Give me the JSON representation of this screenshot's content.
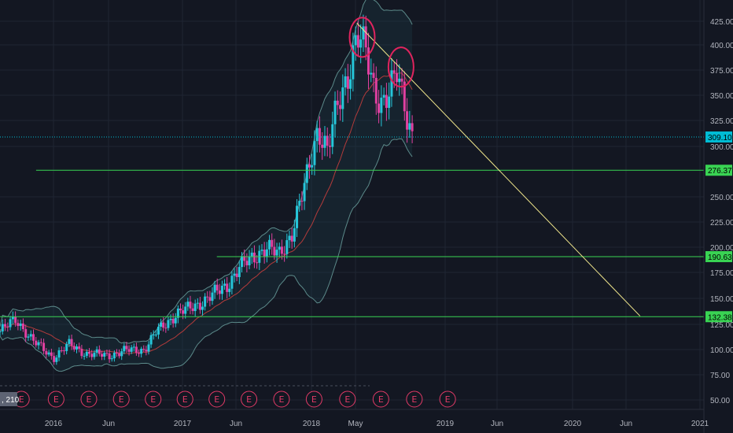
{
  "chart_data": {
    "type": "candlestick",
    "y_ticks": [
      "425.00",
      "400.00",
      "375.00",
      "350.00",
      "325.00",
      "300.00",
      "250.00",
      "225.00",
      "200.00",
      "175.00",
      "150.00",
      "125.00",
      "100.00",
      "75.00",
      "50.00"
    ],
    "y_tick_values": [
      425,
      400,
      375,
      350,
      325,
      300,
      250,
      225,
      200,
      175,
      150,
      125,
      100,
      75,
      50
    ],
    "ylim": [
      40,
      440
    ],
    "x_labels": [
      "2016",
      "Jun",
      "2017",
      "Jun",
      "2018",
      "May",
      "2019",
      "Jun",
      "2020",
      "Jun",
      "2021"
    ],
    "x_label_times": [
      2016.0,
      2016.42,
      2017.0,
      2017.42,
      2018.0,
      2018.33,
      2019.0,
      2019.42,
      2020.0,
      2020.42,
      2021.0
    ],
    "xlim": [
      2015.6,
      2021.0
    ],
    "price_line": {
      "value": 309.1,
      "label": "309.10",
      "color": "#00bcd4"
    },
    "horizontal_levels": [
      {
        "value": 276.37,
        "label": "276.37",
        "color": "#39d353",
        "start_t": 2015.87
      },
      {
        "value": 190.63,
        "label": "190.63",
        "color": "#39d353",
        "start_t": 2017.27
      },
      {
        "value": 132.38,
        "label": "132.38",
        "color": "#39d353",
        "start_t": 2015.6
      }
    ],
    "trend_line": {
      "from": [
        2018.34,
        423
      ],
      "to": [
        2020.53,
        133
      ],
      "color": "#f0e68c"
    },
    "circles": [
      {
        "t": 2018.38,
        "v": 408,
        "color": "#e0245e"
      },
      {
        "t": 2018.67,
        "v": 378,
        "color": "#e0245e"
      }
    ],
    "earnings": {
      "symbol": "E",
      "times": [
        2015.76,
        2016.02,
        2016.27,
        2016.52,
        2016.77,
        2017.02,
        2017.27,
        2017.52,
        2017.77,
        2018.02,
        2018.27,
        2018.52,
        2018.77,
        2019.02
      ]
    },
    "corner_value": ", 210",
    "colors": {
      "up": "#26c6da",
      "down": "#e040a0",
      "band": "#5c8a8a",
      "ma": "#b33b3b",
      "grid": "#1f2533",
      "bg": "#131722"
    }
  }
}
